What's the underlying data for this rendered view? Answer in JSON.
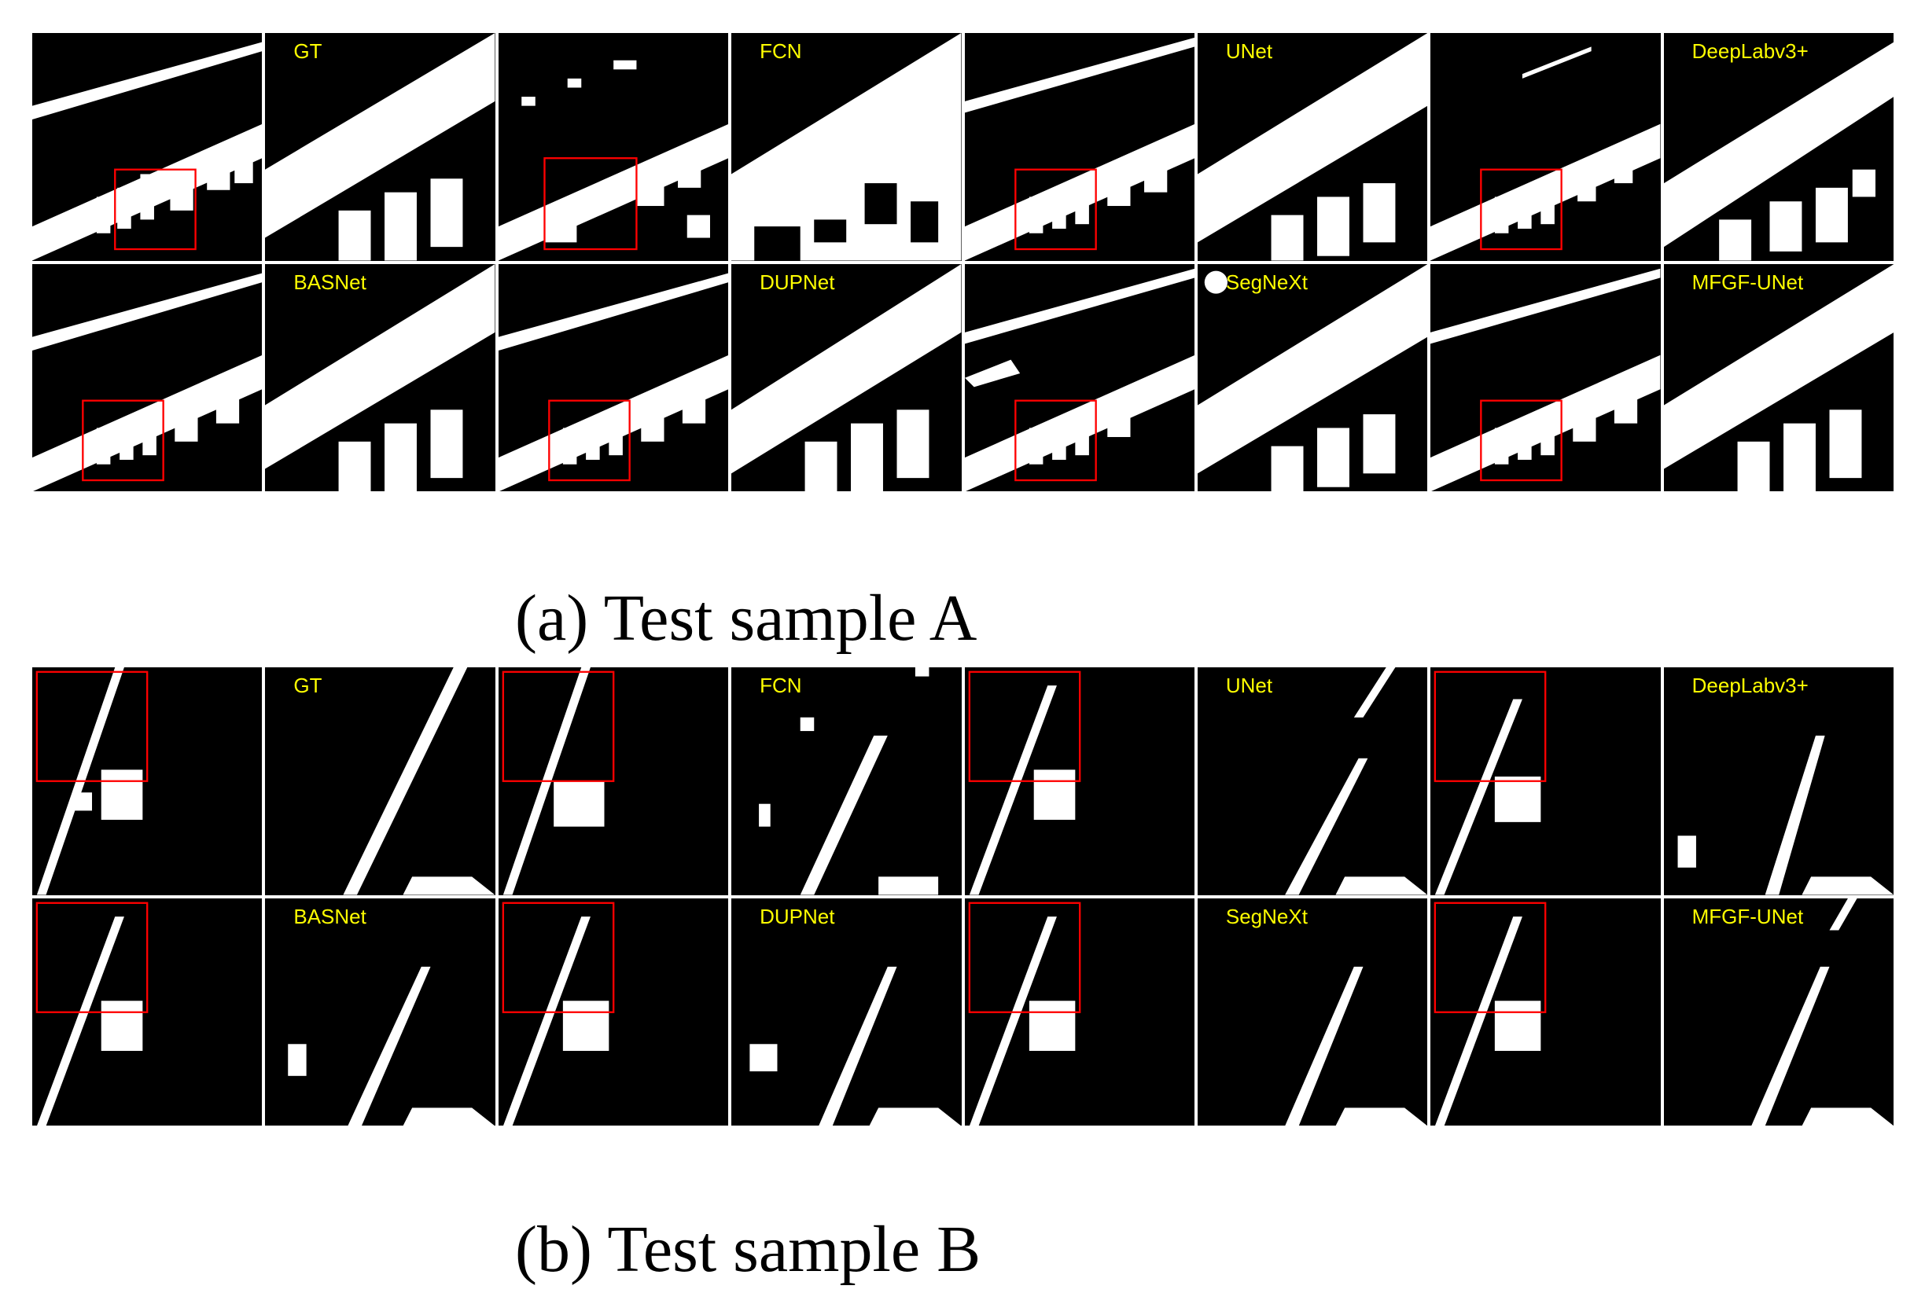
{
  "figure": {
    "sample_a": {
      "caption": "(a) Test sample A",
      "label_row1": [
        "GT",
        "FCN",
        "UNet",
        "DeepLabv3+"
      ],
      "label_row2": [
        "BASNet",
        "DUPNet",
        "SegNeXt",
        "MFGF-UNet"
      ]
    },
    "sample_b": {
      "caption": "(b) Test sample B",
      "label_row1": [
        "GT",
        "FCN",
        "UNet",
        "DeepLabv3+"
      ],
      "label_row2": [
        "BASNet",
        "DUPNet",
        "SegNeXt",
        "MFGF-UNet"
      ]
    }
  },
  "colors": {
    "label": "#ffff00",
    "highlight_box": "#ff0000",
    "mask_fg": "#ffffff",
    "mask_bg": "#000000"
  }
}
